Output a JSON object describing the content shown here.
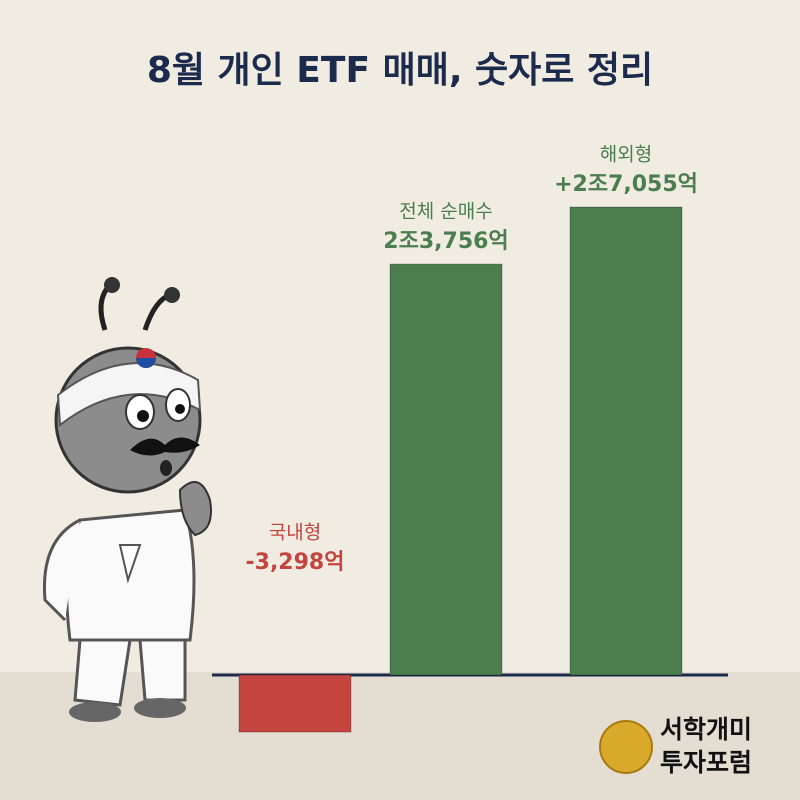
{
  "chart_data": {
    "type": "bar",
    "title": "8월 개인 ETF 매매, 숫자로 정리",
    "categories": [
      "국내형",
      "전체 순매수",
      "해외형"
    ],
    "values": [
      -3298,
      23756,
      27055
    ],
    "value_labels": [
      "-3,298억",
      "2조3,756억",
      "+2조7,055억"
    ],
    "colors": [
      "#c44440",
      "#4b7d4f",
      "#4b7d4f"
    ],
    "brand": [
      "서학개미",
      "투자포럼"
    ]
  }
}
